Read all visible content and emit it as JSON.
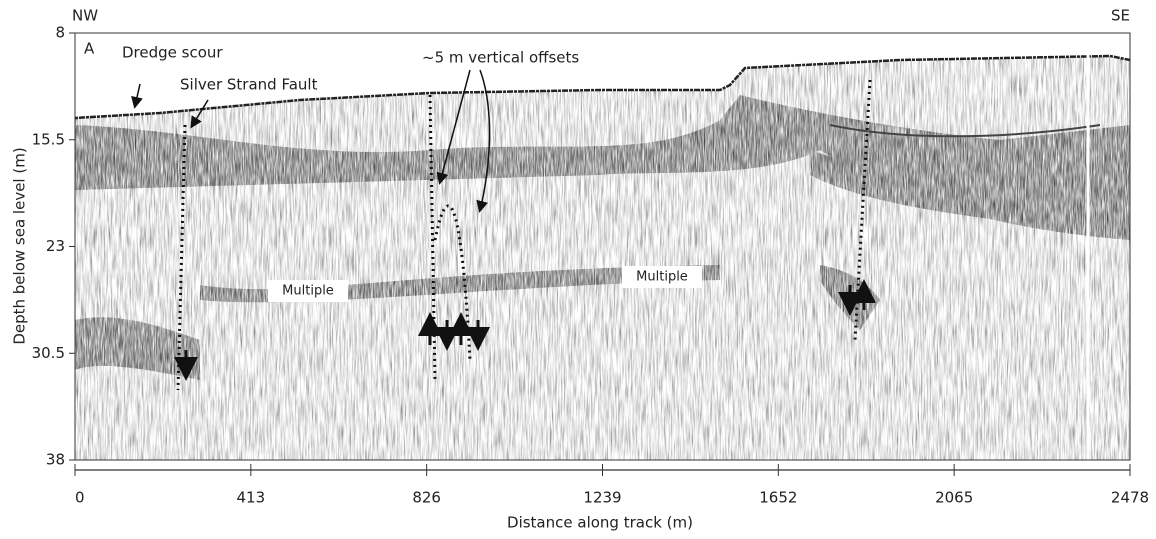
{
  "chart_data": {
    "type": "profile",
    "xlabel": "Distance along track (m)",
    "ylabel": "Depth below sea level (m)",
    "xlim": [
      0,
      2478
    ],
    "xticks": [
      0,
      413,
      826,
      1239,
      1652,
      2065,
      2478
    ],
    "ylim": [
      8,
      38
    ],
    "yticks": [
      8,
      15.5,
      23,
      30.5,
      38
    ],
    "annotations": {
      "left_end": "NW",
      "right_end": "SE",
      "panel": "A",
      "dredge": "Dredge scour",
      "fault": "Silver Strand Fault",
      "offsets": "~5 m vertical offsets",
      "multiple_1": "Multiple",
      "multiple_2": "Multiple"
    }
  }
}
